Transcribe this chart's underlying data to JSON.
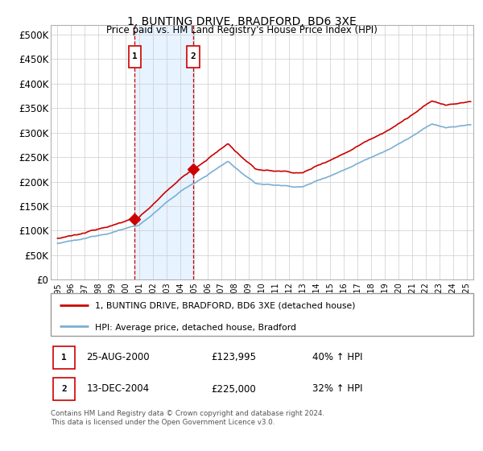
{
  "title": "1, BUNTING DRIVE, BRADFORD, BD6 3XE",
  "subtitle": "Price paid vs. HM Land Registry's House Price Index (HPI)",
  "xlim": [
    1994.5,
    2025.5
  ],
  "ylim": [
    0,
    520000
  ],
  "sale1_x": 2000.65,
  "sale1_y": 123995,
  "sale1_label": "1",
  "sale1_date": "25-AUG-2000",
  "sale1_price": "£123,995",
  "sale1_hpi": "40% ↑ HPI",
  "sale2_x": 2004.95,
  "sale2_y": 225000,
  "sale2_label": "2",
  "sale2_date": "13-DEC-2004",
  "sale2_price": "£225,000",
  "sale2_hpi": "32% ↑ HPI",
  "red_color": "#cc0000",
  "blue_color": "#7bafd4",
  "shading_color": "#ddeeff",
  "legend1": "1, BUNTING DRIVE, BRADFORD, BD6 3XE (detached house)",
  "legend2": "HPI: Average price, detached house, Bradford",
  "footnote": "Contains HM Land Registry data © Crown copyright and database right 2024.\nThis data is licensed under the Open Government Licence v3.0."
}
